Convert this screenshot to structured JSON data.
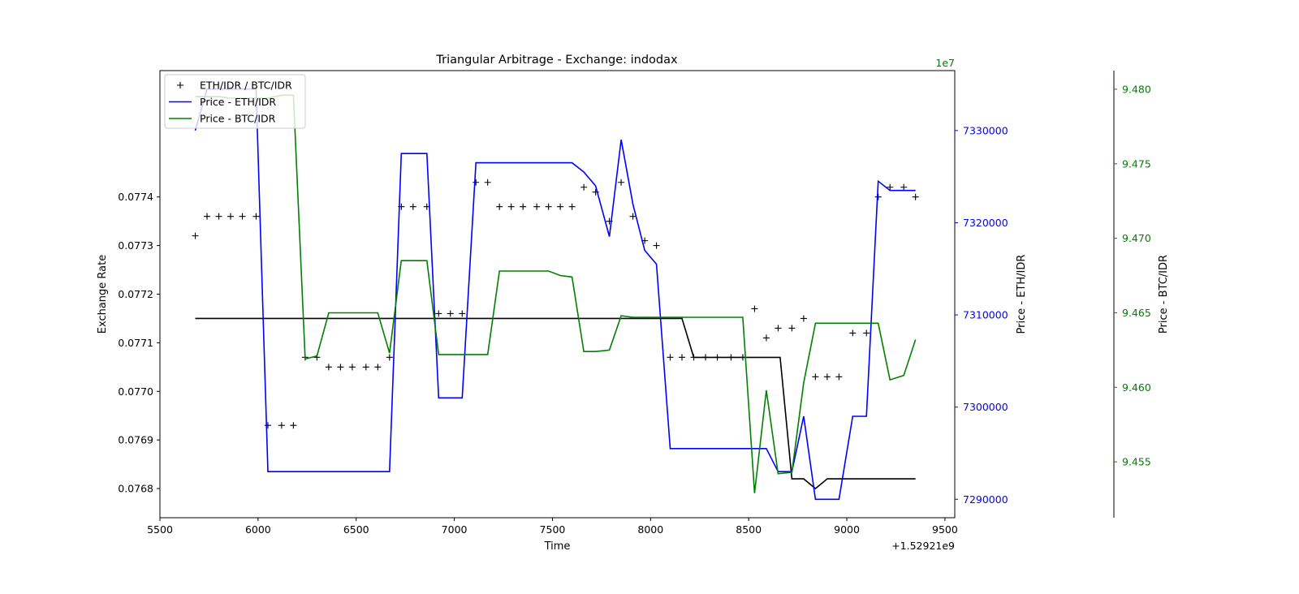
{
  "chart_data": {
    "type": "line",
    "title": "Triangular Arbitrage - Exchange: indodax",
    "xlabel": "Time",
    "x_offset_label": "+1.52921e9",
    "xlim": [
      5500,
      9550
    ],
    "x_ticks": [
      "5500",
      "6000",
      "6500",
      "7000",
      "7500",
      "8000",
      "8500",
      "9000",
      "9500"
    ],
    "x_tick_values": [
      5500,
      6000,
      6500,
      7000,
      7500,
      8000,
      8500,
      9000,
      9500
    ],
    "axes": {
      "left": {
        "label": "Exchange Rate",
        "ylim": [
          0.07674,
          0.07766
        ],
        "ticks": [
          "0.0768",
          "0.0769",
          "0.0770",
          "0.0771",
          "0.0772",
          "0.0773",
          "0.0774"
        ],
        "tick_values": [
          0.0768,
          0.0769,
          0.077,
          0.0771,
          0.0772,
          0.0773,
          0.0774
        ],
        "color": "#000000"
      },
      "right": {
        "label": "Price - ETH/IDR",
        "ylim": [
          7288000,
          7336500
        ],
        "ticks": [
          "7290000",
          "7300000",
          "7310000",
          "7320000",
          "7330000"
        ],
        "tick_values": [
          7290000,
          7300000,
          7310000,
          7320000,
          7330000
        ],
        "offset_label": "1e7",
        "color": "#0000ff"
      },
      "right2": {
        "label": "Price - BTC/IDR",
        "ylim": [
          9.45125,
          9.48125
        ],
        "ticks": [
          "9.455",
          "9.460",
          "9.465",
          "9.470",
          "9.475",
          "9.480"
        ],
        "tick_values": [
          9.455,
          9.46,
          9.465,
          9.47,
          9.475,
          9.48
        ],
        "color": "#008000"
      }
    },
    "legend": {
      "position": "top-left",
      "entries": [
        "ETH/IDR / BTC/IDR",
        "Price - ETH/IDR",
        "Price - BTC/IDR"
      ]
    },
    "series": [
      {
        "name": "ETH/IDR / BTC/IDR",
        "axis": "left",
        "style": "markers",
        "color": "#000000",
        "x": [
          5680,
          5740,
          5800,
          5860,
          5920,
          5990,
          6050,
          6120,
          6180,
          6240,
          6300,
          6360,
          6420,
          6480,
          6550,
          6610,
          6670,
          6730,
          6790,
          6860,
          6920,
          6980,
          7040,
          7110,
          7170,
          7230,
          7290,
          7350,
          7420,
          7480,
          7540,
          7600,
          7660,
          7720,
          7790,
          7850,
          7910,
          7970,
          8030,
          8100,
          8160,
          8220,
          8280,
          8340,
          8410,
          8470,
          8530,
          8590,
          8650,
          8720,
          8780,
          8840,
          8900,
          8960,
          9030,
          9100,
          9160,
          9220,
          9290,
          9350
        ],
        "values": [
          0.07732,
          0.07736,
          0.07736,
          0.07736,
          0.07736,
          0.07736,
          0.07693,
          0.07693,
          0.07693,
          0.07707,
          0.07707,
          0.07705,
          0.07705,
          0.07705,
          0.07705,
          0.07705,
          0.07707,
          0.07738,
          0.07738,
          0.07738,
          0.07716,
          0.07716,
          0.07716,
          0.07743,
          0.07743,
          0.07738,
          0.07738,
          0.07738,
          0.07738,
          0.07738,
          0.07738,
          0.07738,
          0.07742,
          0.07741,
          0.07735,
          0.07743,
          0.07736,
          0.07731,
          0.0773,
          0.07707,
          0.07707,
          0.07707,
          0.07707,
          0.07707,
          0.07707,
          0.07707,
          0.07717,
          0.07711,
          0.07713,
          0.07713,
          0.07715,
          0.07703,
          0.07703,
          0.07703,
          0.07712,
          0.07712,
          0.0774,
          0.07742,
          0.07742,
          0.0774
        ]
      },
      {
        "name": "",
        "axis": "left",
        "style": "line",
        "color": "#000000",
        "x": [
          5680,
          8160,
          8220,
          8660,
          8720,
          8780,
          8840,
          8900,
          8960,
          9350
        ],
        "values": [
          0.07715,
          0.07715,
          0.07707,
          0.07707,
          0.07682,
          0.07682,
          0.0768,
          0.07682,
          0.07682,
          0.07682
        ]
      },
      {
        "name": "Price - ETH/IDR",
        "axis": "right",
        "style": "line",
        "color": "#0000ff",
        "x": [
          5680,
          5740,
          5800,
          5860,
          5920,
          5990,
          6050,
          6120,
          6180,
          6240,
          6300,
          6360,
          6420,
          6480,
          6550,
          6610,
          6670,
          6730,
          6790,
          6860,
          6920,
          6980,
          7040,
          7110,
          7170,
          7230,
          7290,
          7350,
          7420,
          7480,
          7540,
          7600,
          7660,
          7720,
          7790,
          7850,
          7910,
          7970,
          8030,
          8100,
          8160,
          8220,
          8280,
          8340,
          8410,
          8470,
          8530,
          8590,
          8650,
          8720,
          8780,
          8840,
          8900,
          8960,
          9030,
          9100,
          9160,
          9220,
          9290,
          9350
        ],
        "values": [
          7330000,
          7334500,
          7334500,
          7334500,
          7334500,
          7334500,
          7293000,
          7293000,
          7293000,
          7293000,
          7293000,
          7293000,
          7293000,
          7293000,
          7293000,
          7293000,
          7293000,
          7327500,
          7327500,
          7327500,
          7301000,
          7301000,
          7301000,
          7326500,
          7326500,
          7326500,
          7326500,
          7326500,
          7326500,
          7326500,
          7326500,
          7326500,
          7325500,
          7324000,
          7318500,
          7329000,
          7322000,
          7317000,
          7315500,
          7295500,
          7295500,
          7295500,
          7295500,
          7295500,
          7295500,
          7295500,
          7295500,
          7295500,
          7293000,
          7293000,
          7299000,
          7290000,
          7290000,
          7290000,
          7299000,
          7299000,
          7324500,
          7323500,
          7323500,
          7323500
        ]
      },
      {
        "name": "Price - BTC/IDR",
        "axis": "right2",
        "style": "line",
        "color": "#008000",
        "x": [
          5680,
          5740,
          5800,
          5860,
          5920,
          5990,
          6050,
          6120,
          6180,
          6240,
          6300,
          6360,
          6420,
          6480,
          6550,
          6610,
          6670,
          6730,
          6790,
          6860,
          6920,
          6980,
          7040,
          7110,
          7170,
          7230,
          7290,
          7350,
          7420,
          7480,
          7540,
          7600,
          7660,
          7720,
          7790,
          7850,
          7910,
          7970,
          8030,
          8100,
          8160,
          8220,
          8280,
          8340,
          8410,
          8470,
          8530,
          8590,
          8650,
          8720,
          8780,
          8840,
          8900,
          8960,
          9030,
          9100,
          9160,
          9220,
          9290,
          9350
        ],
        "values": [
          9.4795,
          9.4795,
          9.4795,
          9.4794,
          9.4794,
          9.4794,
          9.4794,
          9.4796,
          9.4796,
          9.4619,
          9.4621,
          9.465,
          9.465,
          9.465,
          9.465,
          9.465,
          9.4623,
          9.4685,
          9.4685,
          9.4685,
          9.4622,
          9.4622,
          9.4622,
          9.4622,
          9.4622,
          9.4678,
          9.4678,
          9.4678,
          9.4678,
          9.4678,
          9.4675,
          9.4674,
          9.4624,
          9.4624,
          9.4625,
          9.4648,
          9.4647,
          9.4647,
          9.4647,
          9.4647,
          9.4647,
          9.4647,
          9.4647,
          9.4647,
          9.4647,
          9.4647,
          9.4529,
          9.4598,
          9.4542,
          9.4543,
          9.4603,
          9.4643,
          9.4643,
          9.4643,
          9.4643,
          9.4643,
          9.4643,
          9.4605,
          9.4608,
          9.4632
        ]
      }
    ]
  }
}
